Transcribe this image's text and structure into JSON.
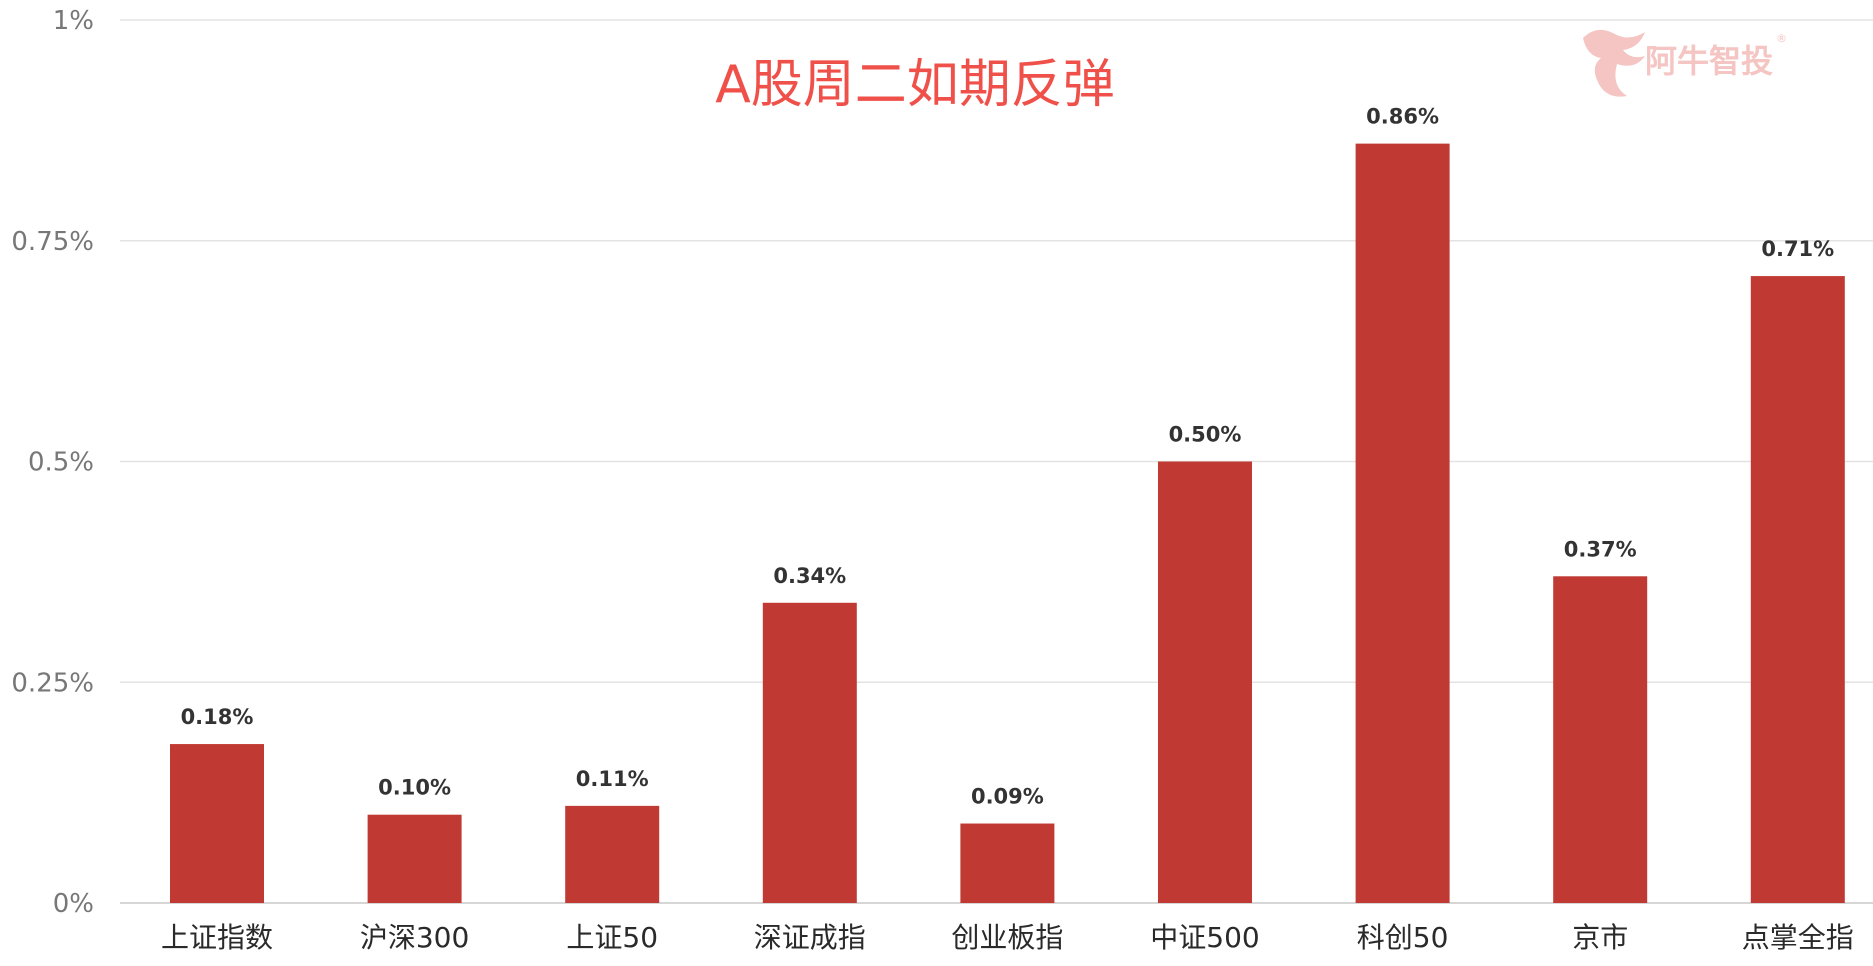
{
  "chart_data": {
    "type": "bar",
    "title": "A股周二如期反弹",
    "categories": [
      "上证指数",
      "沪深300",
      "上证50",
      "深证成指",
      "创业板指",
      "中证500",
      "科创50",
      "京市",
      "点掌全指"
    ],
    "values": [
      0.18,
      0.1,
      0.11,
      0.34,
      0.09,
      0.5,
      0.86,
      0.37,
      0.71
    ],
    "value_labels": [
      "0.18%",
      "0.10%",
      "0.11%",
      "0.34%",
      "0.09%",
      "0.50%",
      "0.86%",
      "0.37%",
      "0.71%"
    ],
    "value_unit": "%",
    "ylim": [
      0,
      1
    ],
    "yticks": [
      0,
      0.25,
      0.5,
      0.75,
      1
    ],
    "ytick_labels": [
      "0%",
      "0.25%",
      "0.5%",
      "0.75%",
      "1%"
    ],
    "grid": true,
    "xlabel": "",
    "ylabel": ""
  },
  "colors": {
    "bar": "#c03a33",
    "title": "#f0504a",
    "watermark": "#f4c5c2"
  },
  "watermark": {
    "text": "阿牛智投",
    "registered": "®",
    "icon": "bull-logo-icon"
  }
}
